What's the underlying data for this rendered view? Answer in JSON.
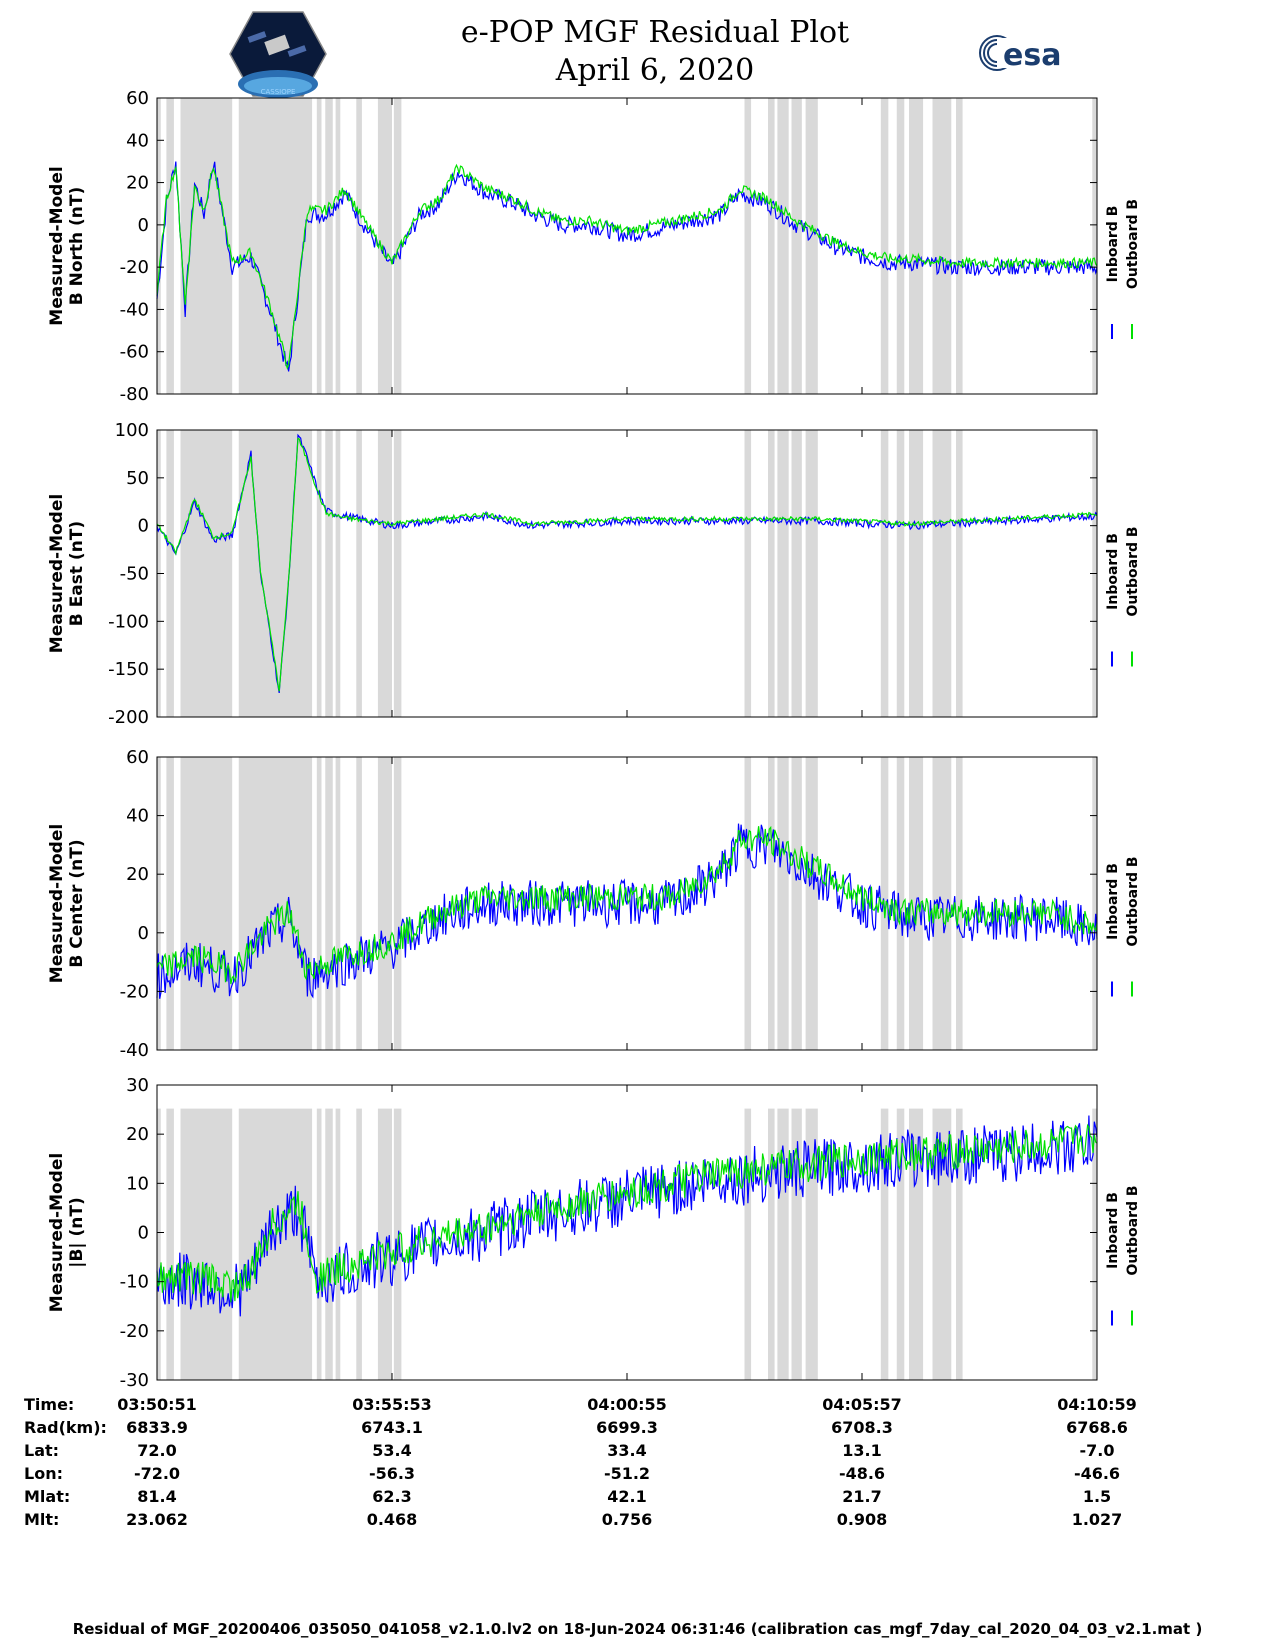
{
  "header": {
    "title_line1": "e-POP MGF Residual Plot",
    "title_line2": "April 6, 2020",
    "esa_logo_text": "esa",
    "cassiope_logo_text": "CASSIOPE"
  },
  "colors": {
    "inboard": "#0000ff",
    "outboard": "#00e000",
    "gap_shading": "#d9d9d9"
  },
  "chart_data": [
    {
      "type": "line",
      "ylabel_line1": "Measured-Model",
      "ylabel_line2": "B North (nT)",
      "ylim": [
        -80,
        60
      ],
      "yticks": [
        -80,
        -60,
        -40,
        -20,
        0,
        20,
        40,
        60
      ],
      "series": [
        {
          "name": "Inboard B",
          "color": "#0000ff",
          "x": [
            0,
            0.01,
            0.02,
            0.03,
            0.04,
            0.05,
            0.06,
            0.08,
            0.1,
            0.12,
            0.14,
            0.16,
            0.18,
            0.2,
            0.22,
            0.25,
            0.28,
            0.3,
            0.32,
            0.35,
            0.38,
            0.4,
            0.43,
            0.46,
            0.5,
            0.55,
            0.6,
            0.62,
            0.65,
            0.68,
            0.7,
            0.72,
            0.75,
            0.78,
            0.8,
            0.85,
            0.9,
            0.95,
            1.0
          ],
          "y": [
            -35,
            10,
            30,
            -40,
            20,
            5,
            30,
            -20,
            -15,
            -40,
            -70,
            5,
            5,
            15,
            0,
            -20,
            5,
            10,
            25,
            15,
            10,
            5,
            0,
            0,
            -5,
            0,
            5,
            15,
            10,
            0,
            -5,
            -10,
            -15,
            -18,
            -18,
            -20,
            -20,
            -20,
            -20
          ]
        },
        {
          "name": "Outboard B",
          "color": "#00e000",
          "x": [
            0,
            0.01,
            0.02,
            0.03,
            0.04,
            0.05,
            0.06,
            0.08,
            0.1,
            0.12,
            0.14,
            0.16,
            0.18,
            0.2,
            0.22,
            0.25,
            0.28,
            0.3,
            0.32,
            0.35,
            0.38,
            0.4,
            0.43,
            0.46,
            0.5,
            0.55,
            0.6,
            0.62,
            0.65,
            0.68,
            0.7,
            0.72,
            0.75,
            0.78,
            0.8,
            0.85,
            0.9,
            0.95,
            1.0
          ],
          "y": [
            -33,
            12,
            28,
            -38,
            18,
            7,
            28,
            -18,
            -13,
            -38,
            -68,
            7,
            7,
            17,
            2,
            -18,
            7,
            12,
            27,
            17,
            12,
            7,
            2,
            2,
            -3,
            2,
            7,
            17,
            12,
            2,
            -3,
            -8,
            -13,
            -16,
            -16,
            -18,
            -18,
            -18,
            -18
          ]
        }
      ]
    },
    {
      "type": "line",
      "ylabel_line1": "Measured-Model",
      "ylabel_line2": "B East (nT)",
      "ylim": [
        -200,
        100
      ],
      "yticks": [
        -200,
        -150,
        -100,
        -50,
        0,
        50,
        100
      ],
      "series": [
        {
          "name": "Inboard B",
          "color": "#0000ff",
          "x": [
            0,
            0.02,
            0.04,
            0.06,
            0.08,
            0.1,
            0.11,
            0.12,
            0.13,
            0.14,
            0.15,
            0.16,
            0.17,
            0.18,
            0.2,
            0.25,
            0.3,
            0.35,
            0.4,
            0.5,
            0.6,
            0.7,
            0.8,
            0.9,
            1.0
          ],
          "y": [
            0,
            -30,
            25,
            -15,
            -10,
            75,
            -50,
            -110,
            -175,
            -60,
            95,
            70,
            40,
            15,
            10,
            0,
            5,
            10,
            0,
            5,
            5,
            5,
            0,
            5,
            10
          ]
        },
        {
          "name": "Outboard B",
          "color": "#00e000",
          "x": [
            0,
            0.02,
            0.04,
            0.06,
            0.08,
            0.1,
            0.11,
            0.12,
            0.13,
            0.14,
            0.15,
            0.16,
            0.17,
            0.18,
            0.2,
            0.25,
            0.3,
            0.35,
            0.4,
            0.5,
            0.6,
            0.7,
            0.8,
            0.9,
            1.0
          ],
          "y": [
            2,
            -28,
            28,
            -12,
            -8,
            72,
            -48,
            -108,
            -172,
            -58,
            92,
            68,
            38,
            13,
            8,
            2,
            7,
            12,
            2,
            7,
            7,
            7,
            2,
            7,
            12
          ]
        }
      ]
    },
    {
      "type": "line",
      "ylabel_line1": "Measured-Model",
      "ylabel_line2": "B Center (nT)",
      "ylim": [
        -40,
        60
      ],
      "yticks": [
        -40,
        -20,
        0,
        20,
        40,
        60
      ],
      "series": [
        {
          "name": "Inboard B",
          "color": "#0000ff",
          "x": [
            0,
            0.04,
            0.08,
            0.12,
            0.14,
            0.16,
            0.2,
            0.25,
            0.3,
            0.35,
            0.4,
            0.45,
            0.5,
            0.55,
            0.6,
            0.62,
            0.65,
            0.7,
            0.75,
            0.8,
            0.85,
            0.9,
            0.95,
            1.0
          ],
          "y": [
            -15,
            -10,
            -15,
            0,
            5,
            -15,
            -10,
            -5,
            5,
            10,
            10,
            10,
            10,
            10,
            20,
            30,
            30,
            20,
            10,
            5,
            5,
            5,
            5,
            0
          ]
        },
        {
          "name": "Outboard B",
          "color": "#00e000",
          "x": [
            0,
            0.04,
            0.08,
            0.12,
            0.14,
            0.16,
            0.2,
            0.25,
            0.3,
            0.35,
            0.4,
            0.45,
            0.5,
            0.55,
            0.6,
            0.62,
            0.65,
            0.7,
            0.75,
            0.8,
            0.85,
            0.9,
            0.95,
            1.0
          ],
          "y": [
            -13,
            -8,
            -13,
            2,
            7,
            -13,
            -8,
            -3,
            7,
            12,
            12,
            12,
            12,
            12,
            22,
            32,
            32,
            22,
            12,
            7,
            7,
            7,
            7,
            2
          ]
        }
      ]
    },
    {
      "type": "line",
      "ylabel_line1": "Measured-Model",
      "ylabel_line2": "|B| (nT)",
      "ylim": [
        -30,
        30
      ],
      "yticks": [
        -30,
        -20,
        -10,
        0,
        10,
        20,
        30
      ],
      "series": [
        {
          "name": "Inboard B",
          "color": "#0000ff",
          "x": [
            0,
            0.05,
            0.08,
            0.1,
            0.12,
            0.15,
            0.17,
            0.2,
            0.25,
            0.3,
            0.35,
            0.4,
            0.45,
            0.5,
            0.55,
            0.6,
            0.65,
            0.7,
            0.75,
            0.8,
            0.9,
            1.0
          ],
          "y": [
            -10,
            -10,
            -12,
            -10,
            0,
            5,
            -10,
            -8,
            -5,
            -2,
            0,
            3,
            5,
            7,
            9,
            11,
            12,
            13,
            14,
            15,
            16,
            18
          ]
        },
        {
          "name": "Outboard B",
          "color": "#00e000",
          "x": [
            0,
            0.05,
            0.08,
            0.1,
            0.12,
            0.15,
            0.17,
            0.2,
            0.25,
            0.3,
            0.35,
            0.4,
            0.45,
            0.5,
            0.55,
            0.6,
            0.65,
            0.7,
            0.75,
            0.8,
            0.9,
            1.0
          ],
          "y": [
            -9,
            -9,
            -11,
            -9,
            1,
            6,
            -9,
            -7,
            -4,
            -1,
            1,
            4,
            6,
            8,
            10,
            12,
            13,
            14,
            15,
            16,
            17,
            19
          ]
        }
      ]
    }
  ],
  "legend": {
    "inboard": "Inboard B",
    "outboard": "Outboard B"
  },
  "gaps": [
    [
      0.0,
      0.004
    ],
    [
      0.01,
      0.018
    ],
    [
      0.025,
      0.08
    ],
    [
      0.087,
      0.165
    ],
    [
      0.17,
      0.175
    ],
    [
      0.179,
      0.187
    ],
    [
      0.19,
      0.195
    ],
    [
      0.212,
      0.218
    ],
    [
      0.235,
      0.25
    ],
    [
      0.252,
      0.26
    ],
    [
      0.625,
      0.632
    ],
    [
      0.65,
      0.657
    ],
    [
      0.66,
      0.672
    ],
    [
      0.675,
      0.686
    ],
    [
      0.69,
      0.703
    ],
    [
      0.77,
      0.778
    ],
    [
      0.787,
      0.795
    ],
    [
      0.8,
      0.815
    ],
    [
      0.825,
      0.845
    ],
    [
      0.85,
      0.857
    ],
    [
      0.995,
      1.0
    ]
  ],
  "footer": {
    "row_labels": [
      "Time:",
      "Rad(km):",
      "Lat:",
      "Lon:",
      "Mlat:",
      "Mlt:"
    ],
    "columns": [
      [
        "03:50:51",
        "6833.9",
        "72.0",
        "-72.0",
        "81.4",
        "23.062"
      ],
      [
        "03:55:53",
        "6743.1",
        "53.4",
        "-56.3",
        "62.3",
        "0.468"
      ],
      [
        "04:00:55",
        "6699.3",
        "33.4",
        "-51.2",
        "42.1",
        "0.756"
      ],
      [
        "04:05:57",
        "6708.3",
        "13.1",
        "-48.6",
        "21.7",
        "0.908"
      ],
      [
        "04:10:59",
        "6768.6",
        "-7.0",
        "-46.6",
        "1.5",
        "1.027"
      ]
    ],
    "footnote": "Residual of MGF_20200406_035050_041058_v2.1.0.lv2 on 18-Jun-2024 06:31:46 (calibration cas_mgf_7day_cal_2020_04_03_v2.1.mat )"
  }
}
